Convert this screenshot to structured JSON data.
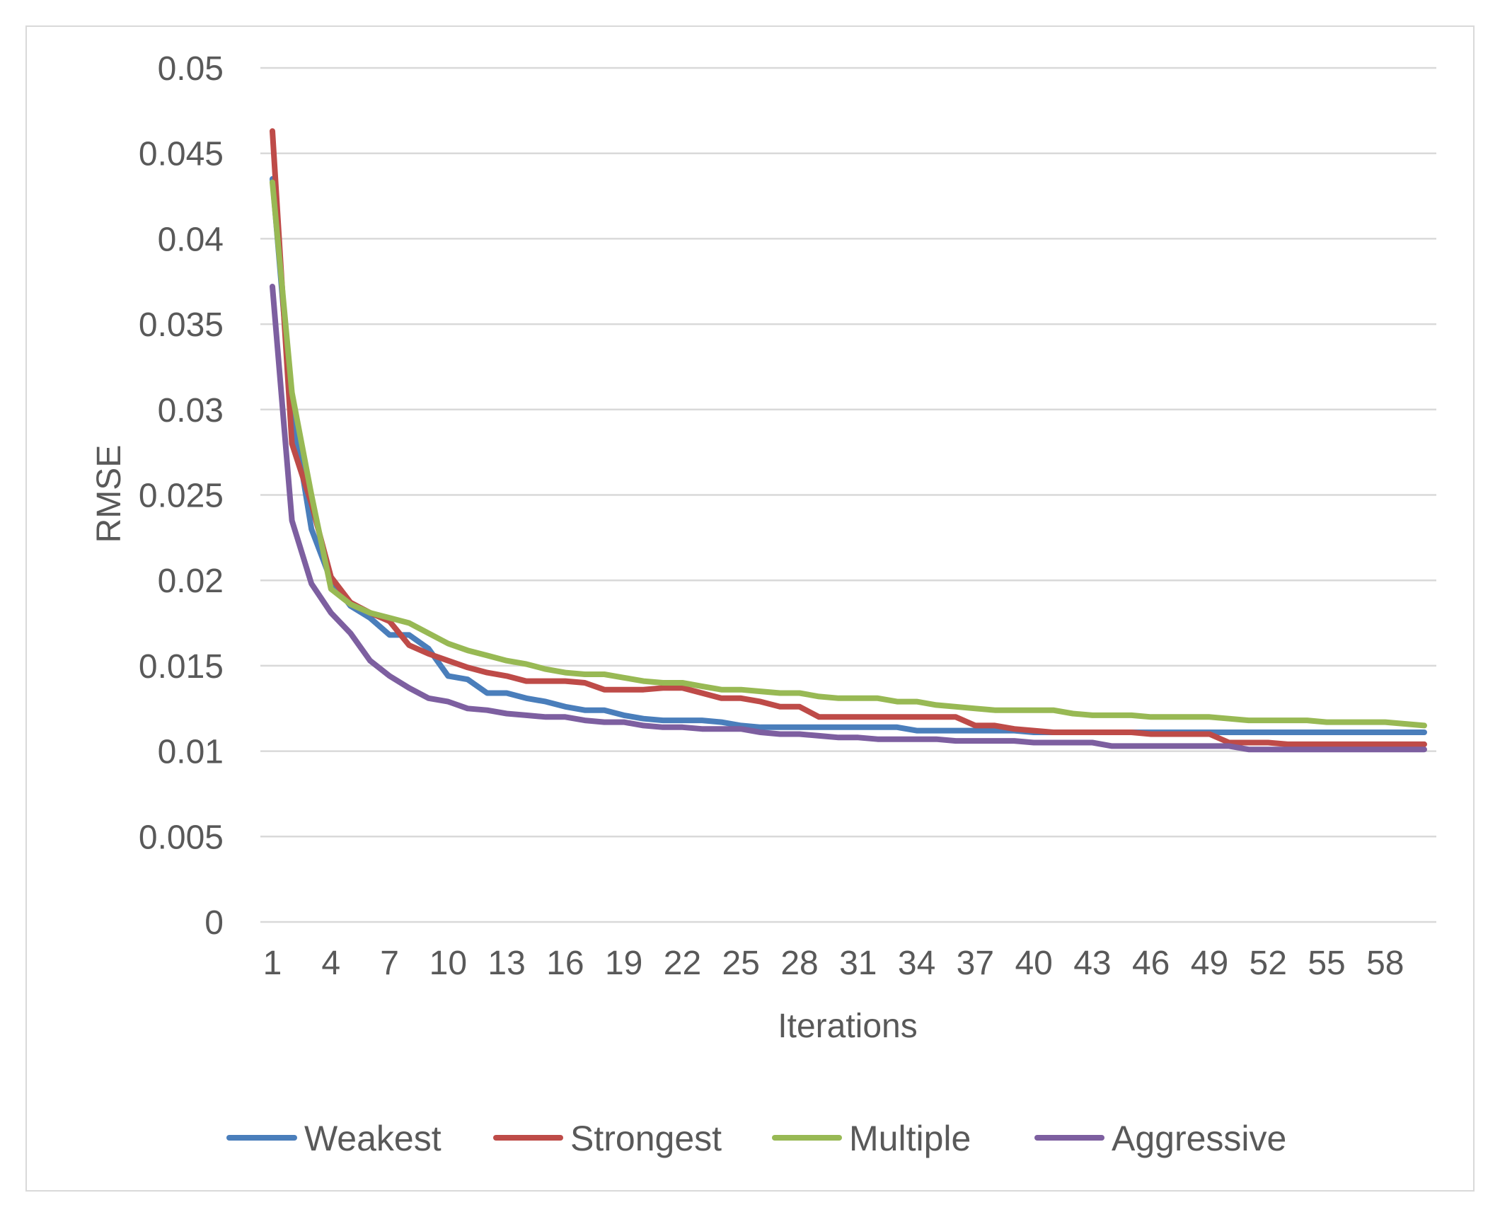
{
  "chart_data": {
    "type": "line",
    "title": "",
    "xlabel": "Iterations",
    "ylabel": "RMSE",
    "ylim": [
      0,
      0.05
    ],
    "yticks": [
      "0",
      "0.005",
      "0.01",
      "0.015",
      "0.02",
      "0.025",
      "0.03",
      "0.035",
      "0.04",
      "0.045",
      "0.05"
    ],
    "xtick_labels": [
      "1",
      "4",
      "7",
      "10",
      "13",
      "16",
      "19",
      "22",
      "25",
      "28",
      "31",
      "34",
      "37",
      "40",
      "43",
      "46",
      "49",
      "52",
      "55",
      "58"
    ],
    "x": [
      1,
      2,
      3,
      4,
      5,
      6,
      7,
      8,
      9,
      10,
      11,
      12,
      13,
      14,
      15,
      16,
      17,
      18,
      19,
      20,
      21,
      22,
      23,
      24,
      25,
      26,
      27,
      28,
      29,
      30,
      31,
      32,
      33,
      34,
      35,
      36,
      37,
      38,
      39,
      40,
      41,
      42,
      43,
      44,
      45,
      46,
      47,
      48,
      49,
      50,
      51,
      52,
      53,
      54,
      55,
      56,
      57,
      58,
      59,
      60
    ],
    "grid": true,
    "legend_position": "bottom",
    "series": [
      {
        "name": "Weakest",
        "color": "#4a7ebb",
        "values": [
          0.0435,
          0.03,
          0.023,
          0.02,
          0.0185,
          0.0178,
          0.0168,
          0.0168,
          0.016,
          0.0144,
          0.0142,
          0.0134,
          0.0134,
          0.0131,
          0.0129,
          0.0126,
          0.0124,
          0.0124,
          0.0121,
          0.0119,
          0.0118,
          0.0118,
          0.0118,
          0.0117,
          0.0115,
          0.0114,
          0.0114,
          0.0114,
          0.0114,
          0.0114,
          0.0114,
          0.0114,
          0.0114,
          0.0112,
          0.0112,
          0.0112,
          0.0112,
          0.0112,
          0.0112,
          0.0111,
          0.0111,
          0.0111,
          0.0111,
          0.0111,
          0.0111,
          0.0111,
          0.0111,
          0.0111,
          0.0111,
          0.0111,
          0.0111,
          0.0111,
          0.0111,
          0.0111,
          0.0111,
          0.0111,
          0.0111,
          0.0111,
          0.0111,
          0.0111
        ]
      },
      {
        "name": "Strongest",
        "color": "#be4b48",
        "values": [
          0.0463,
          0.028,
          0.0245,
          0.0202,
          0.0187,
          0.0181,
          0.0176,
          0.0162,
          0.0157,
          0.0153,
          0.0149,
          0.0146,
          0.0144,
          0.0141,
          0.0141,
          0.0141,
          0.014,
          0.0136,
          0.0136,
          0.0136,
          0.0137,
          0.0137,
          0.0134,
          0.0131,
          0.0131,
          0.0129,
          0.0126,
          0.0126,
          0.012,
          0.012,
          0.012,
          0.012,
          0.012,
          0.012,
          0.012,
          0.012,
          0.0115,
          0.0115,
          0.0113,
          0.0112,
          0.0111,
          0.0111,
          0.0111,
          0.0111,
          0.0111,
          0.011,
          0.011,
          0.011,
          0.011,
          0.0105,
          0.0105,
          0.0105,
          0.0104,
          0.0104,
          0.0104,
          0.0104,
          0.0104,
          0.0104,
          0.0104,
          0.0104
        ]
      },
      {
        "name": "Multiple",
        "color": "#98b954",
        "values": [
          0.0433,
          0.031,
          0.025,
          0.0195,
          0.0186,
          0.0181,
          0.0178,
          0.0175,
          0.0169,
          0.0163,
          0.0159,
          0.0156,
          0.0153,
          0.0151,
          0.0148,
          0.0146,
          0.0145,
          0.0145,
          0.0143,
          0.0141,
          0.014,
          0.014,
          0.0138,
          0.0136,
          0.0136,
          0.0135,
          0.0134,
          0.0134,
          0.0132,
          0.0131,
          0.0131,
          0.0131,
          0.0129,
          0.0129,
          0.0127,
          0.0126,
          0.0125,
          0.0124,
          0.0124,
          0.0124,
          0.0124,
          0.0122,
          0.0121,
          0.0121,
          0.0121,
          0.012,
          0.012,
          0.012,
          0.012,
          0.0119,
          0.0118,
          0.0118,
          0.0118,
          0.0118,
          0.0117,
          0.0117,
          0.0117,
          0.0117,
          0.0116,
          0.0115
        ]
      },
      {
        "name": "Aggressive",
        "color": "#7d5fa0",
        "values": [
          0.0372,
          0.0235,
          0.0198,
          0.0181,
          0.0169,
          0.0153,
          0.0144,
          0.0137,
          0.0131,
          0.0129,
          0.0125,
          0.0124,
          0.0122,
          0.0121,
          0.012,
          0.012,
          0.0118,
          0.0117,
          0.0117,
          0.0115,
          0.0114,
          0.0114,
          0.0113,
          0.0113,
          0.0113,
          0.0111,
          0.011,
          0.011,
          0.0109,
          0.0108,
          0.0108,
          0.0107,
          0.0107,
          0.0107,
          0.0107,
          0.0106,
          0.0106,
          0.0106,
          0.0106,
          0.0105,
          0.0105,
          0.0105,
          0.0105,
          0.0103,
          0.0103,
          0.0103,
          0.0103,
          0.0103,
          0.0103,
          0.0103,
          0.0101,
          0.0101,
          0.0101,
          0.0101,
          0.0101,
          0.0101,
          0.0101,
          0.0101,
          0.0101,
          0.0101
        ]
      }
    ]
  }
}
